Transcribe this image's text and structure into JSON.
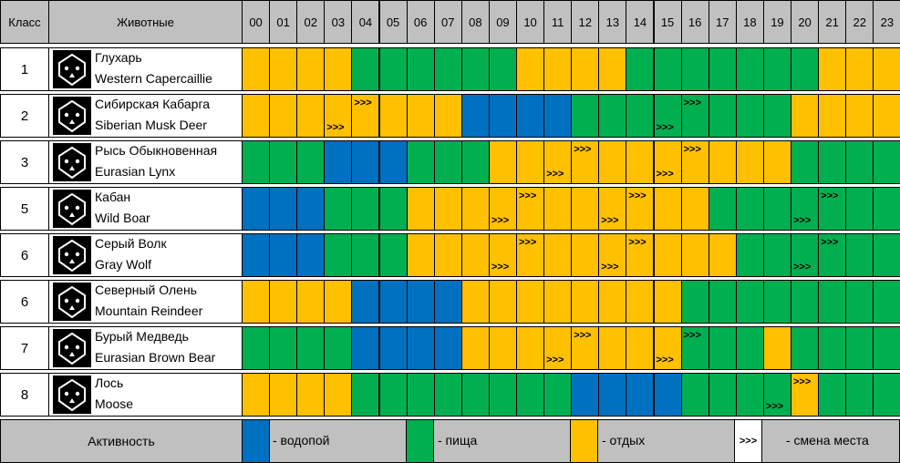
{
  "header": {
    "class_label": "Класс",
    "animals_label": "Животные",
    "hours": [
      "00",
      "01",
      "02",
      "03",
      "04",
      "05",
      "06",
      "07",
      "08",
      "09",
      "10",
      "11",
      "12",
      "13",
      "14",
      "15",
      "16",
      "17",
      "18",
      "19",
      "20",
      "21",
      "22",
      "23"
    ]
  },
  "colors": {
    "b": "#0070c0",
    "g": "#00b050",
    "y": "#ffc000",
    "header_bg": "#c0c0c0"
  },
  "rows": [
    {
      "class": "1",
      "name_ru": "Глухарь",
      "name_en": "Western Capercaillie",
      "icon": "capercaillie-icon",
      "hours": [
        "y",
        "y",
        "y",
        "y",
        "g",
        "g",
        "g",
        "g",
        "g",
        "g",
        "y",
        "y",
        "y",
        "y",
        "g",
        "g",
        "g",
        "g",
        "g",
        "g",
        "g",
        "y",
        "y",
        "y"
      ],
      "arrows": []
    },
    {
      "class": "2",
      "name_ru": "Сибирская Кабарга",
      "name_en": "Siberian Musk Deer",
      "icon": "musk-deer-icon",
      "hours": [
        "y",
        "y",
        "y",
        "y",
        "y",
        "y",
        "y",
        "y",
        "b",
        "b",
        "b",
        "b",
        "g",
        "g",
        "g",
        "g",
        "g",
        "g",
        "g",
        "g",
        "y",
        "y",
        "y",
        "y"
      ],
      "arrows": [
        {
          "h": 3,
          "pos": "bot"
        },
        {
          "h": 4,
          "pos": "top"
        },
        {
          "h": 15,
          "pos": "bot"
        },
        {
          "h": 16,
          "pos": "top"
        }
      ]
    },
    {
      "class": "3",
      "name_ru": "Рысь Обыкновенная",
      "name_en": "Eurasian Lynx",
      "icon": "lynx-icon",
      "hours": [
        "g",
        "g",
        "g",
        "b",
        "b",
        "b",
        "g",
        "g",
        "g",
        "y",
        "y",
        "y",
        "y",
        "y",
        "y",
        "y",
        "y",
        "y",
        "y",
        "y",
        "g",
        "g",
        "g",
        "g"
      ],
      "arrows": [
        {
          "h": 11,
          "pos": "bot"
        },
        {
          "h": 12,
          "pos": "top"
        },
        {
          "h": 15,
          "pos": "bot"
        },
        {
          "h": 16,
          "pos": "top"
        }
      ]
    },
    {
      "class": "5",
      "name_ru": "Кабан",
      "name_en": "Wild Boar",
      "icon": "boar-icon",
      "hours": [
        "b",
        "b",
        "b",
        "g",
        "g",
        "g",
        "y",
        "y",
        "y",
        "y",
        "y",
        "y",
        "y",
        "y",
        "y",
        "y",
        "y",
        "g",
        "g",
        "g",
        "g",
        "g",
        "g",
        "g"
      ],
      "arrows": [
        {
          "h": 9,
          "pos": "bot"
        },
        {
          "h": 10,
          "pos": "top"
        },
        {
          "h": 13,
          "pos": "bot"
        },
        {
          "h": 14,
          "pos": "top"
        },
        {
          "h": 20,
          "pos": "bot"
        },
        {
          "h": 21,
          "pos": "top"
        }
      ]
    },
    {
      "class": "6",
      "name_ru": "Серый Волк",
      "name_en": "Gray Wolf",
      "icon": "wolf-icon",
      "hours": [
        "b",
        "b",
        "b",
        "g",
        "g",
        "g",
        "y",
        "y",
        "y",
        "y",
        "y",
        "y",
        "y",
        "y",
        "y",
        "y",
        "y",
        "y",
        "g",
        "g",
        "g",
        "g",
        "g",
        "g"
      ],
      "arrows": [
        {
          "h": 9,
          "pos": "bot"
        },
        {
          "h": 10,
          "pos": "top"
        },
        {
          "h": 13,
          "pos": "bot"
        },
        {
          "h": 14,
          "pos": "top"
        },
        {
          "h": 20,
          "pos": "bot"
        },
        {
          "h": 21,
          "pos": "top"
        }
      ]
    },
    {
      "class": "6",
      "name_ru": "Северный Олень",
      "name_en": "Mountain Reindeer",
      "icon": "reindeer-icon",
      "hours": [
        "y",
        "y",
        "y",
        "y",
        "b",
        "b",
        "b",
        "b",
        "y",
        "y",
        "y",
        "y",
        "y",
        "y",
        "y",
        "y",
        "g",
        "g",
        "g",
        "g",
        "g",
        "g",
        "g",
        "g"
      ],
      "arrows": []
    },
    {
      "class": "7",
      "name_ru": "Бурый Медведь",
      "name_en": "Eurasian Brown Bear",
      "icon": "bear-icon",
      "hours": [
        "g",
        "g",
        "g",
        "g",
        "b",
        "b",
        "b",
        "b",
        "y",
        "y",
        "y",
        "y",
        "y",
        "y",
        "y",
        "y",
        "g",
        "g",
        "g",
        "y",
        "g",
        "g",
        "g",
        "g"
      ],
      "arrows": [
        {
          "h": 11,
          "pos": "bot"
        },
        {
          "h": 12,
          "pos": "top"
        },
        {
          "h": 15,
          "pos": "bot"
        },
        {
          "h": 16,
          "pos": "top"
        }
      ]
    },
    {
      "class": "8",
      "name_ru": "Лось",
      "name_en": "Moose",
      "icon": "moose-icon",
      "hours": [
        "y",
        "y",
        "y",
        "y",
        "g",
        "g",
        "g",
        "g",
        "g",
        "g",
        "g",
        "g",
        "b",
        "b",
        "b",
        "b",
        "g",
        "g",
        "g",
        "g",
        "y",
        "g",
        "g",
        "g"
      ],
      "arrows": [
        {
          "h": 19,
          "pos": "bot"
        },
        {
          "h": 20,
          "pos": "top"
        }
      ]
    }
  ],
  "arrow_glyph": ">>>",
  "legend": {
    "title": "Активность",
    "water": "- водопой",
    "food": "- пища",
    "rest": "- отдых",
    "move_glyph": ">>>",
    "move": "- смена места"
  }
}
